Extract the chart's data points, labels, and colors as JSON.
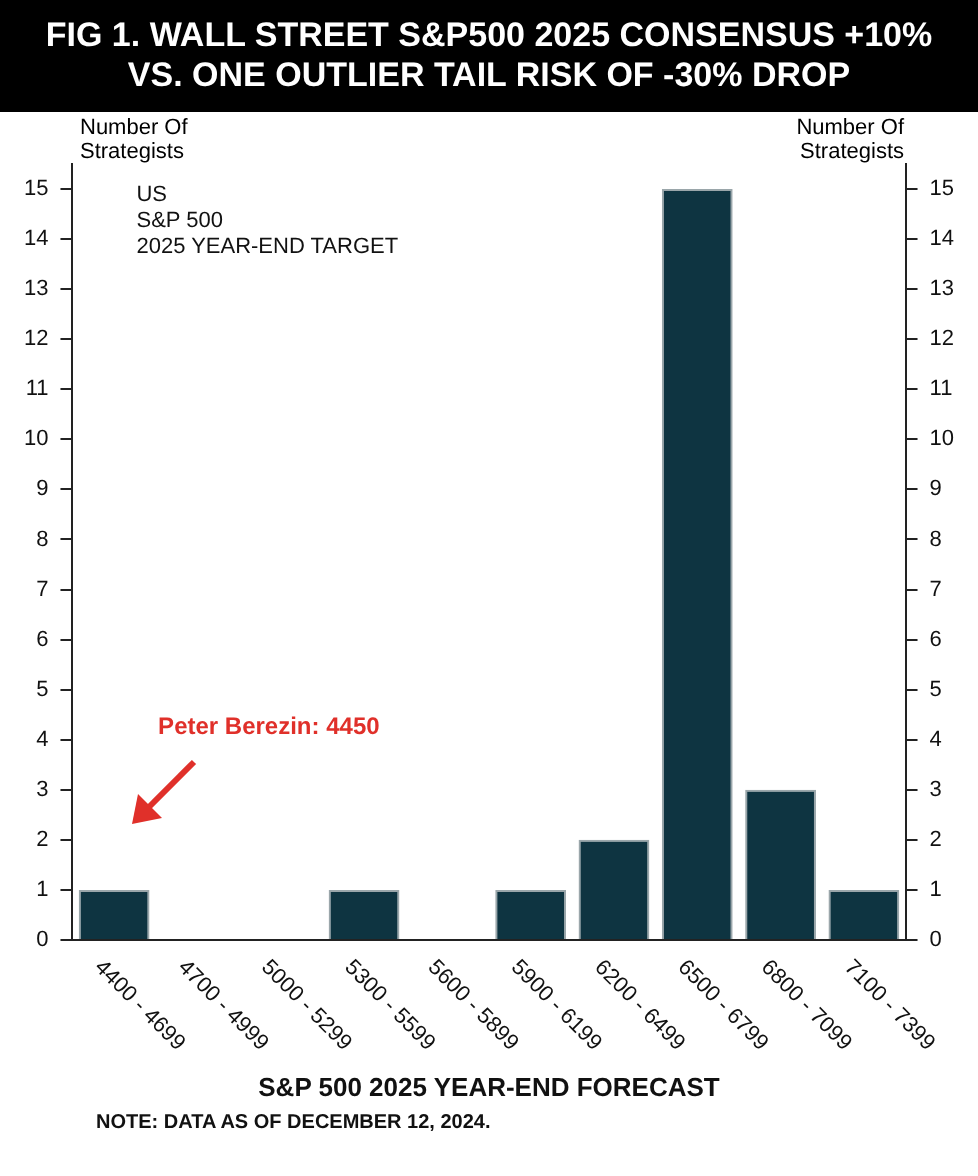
{
  "chart_data": {
    "type": "bar",
    "title": "FIG 1. WALL STREET S&P500 2025 CONSENSUS +10% VS. ONE OUTLIER TAIL RISK OF -30% DROP",
    "xlabel": "S&P 500 2025 YEAR-END FORECAST",
    "ylabel": "Number Of Strategists",
    "y2label": "Number Of Strategists",
    "categories": [
      "4400 - 4699",
      "4700 - 4999",
      "5000 - 5299",
      "5300 - 5599",
      "5600 - 5899",
      "5900 - 6199",
      "6200 - 6499",
      "6500 - 6799",
      "6800 - 7099",
      "7100 - 7399"
    ],
    "series": [
      {
        "color": "#0e3441",
        "values": [
          1,
          0,
          0,
          1,
          0,
          1,
          2,
          15,
          3,
          1
        ]
      }
    ],
    "ylim": [
      0,
      15.5
    ],
    "yticks": [
      0,
      1,
      2,
      3,
      4,
      5,
      6,
      7,
      8,
      9,
      10,
      11,
      12,
      13,
      14,
      15
    ],
    "y2lim": [
      0,
      15.5
    ],
    "y2ticks": [
      0,
      1,
      2,
      3,
      4,
      5,
      6,
      7,
      8,
      9,
      10,
      11,
      12,
      13,
      14,
      15
    ],
    "grid": false,
    "legend": false,
    "annotations": [
      "US\nS&P 500\n2025 YEAR-END TARGET",
      "Peter Berezin: 4450",
      "NOTE: DATA AS OF DECEMBER 12, 2024."
    ]
  }
}
